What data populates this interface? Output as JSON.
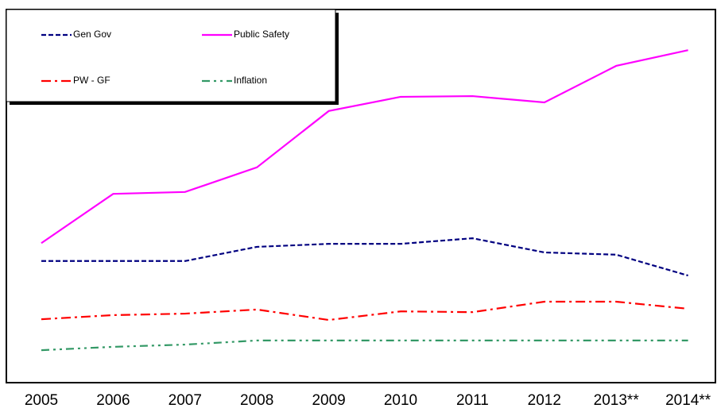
{
  "chart_data": {
    "type": "line",
    "categories": [
      "2005",
      "2006",
      "2007",
      "2008",
      "2009",
      "2010",
      "2011",
      "2012",
      "2013**",
      "2014**"
    ],
    "ylim": [
      0,
      100
    ],
    "series": [
      {
        "name": "Gen Gov",
        "color": "#000080",
        "values": [
          32.6,
          32.6,
          32.6,
          36.4,
          37.2,
          37.2,
          38.7,
          34.9,
          34.3,
          28.7
        ]
      },
      {
        "name": "Public Safety",
        "color": "#ff00ff",
        "values": [
          37.4,
          50.6,
          51.1,
          57.7,
          72.8,
          76.6,
          76.8,
          75.1,
          84.9,
          89.1
        ]
      },
      {
        "name": "PW - GF",
        "color": "#ff0000",
        "values": [
          17.0,
          18.1,
          18.5,
          19.6,
          16.8,
          19.1,
          18.9,
          21.7,
          21.7,
          19.8
        ]
      },
      {
        "name": "Inflation",
        "color": "#339966",
        "values": [
          8.7,
          9.6,
          10.2,
          11.3,
          11.3,
          11.3,
          11.3,
          11.3,
          11.3,
          11.3
        ]
      }
    ],
    "legend": "upper left"
  }
}
